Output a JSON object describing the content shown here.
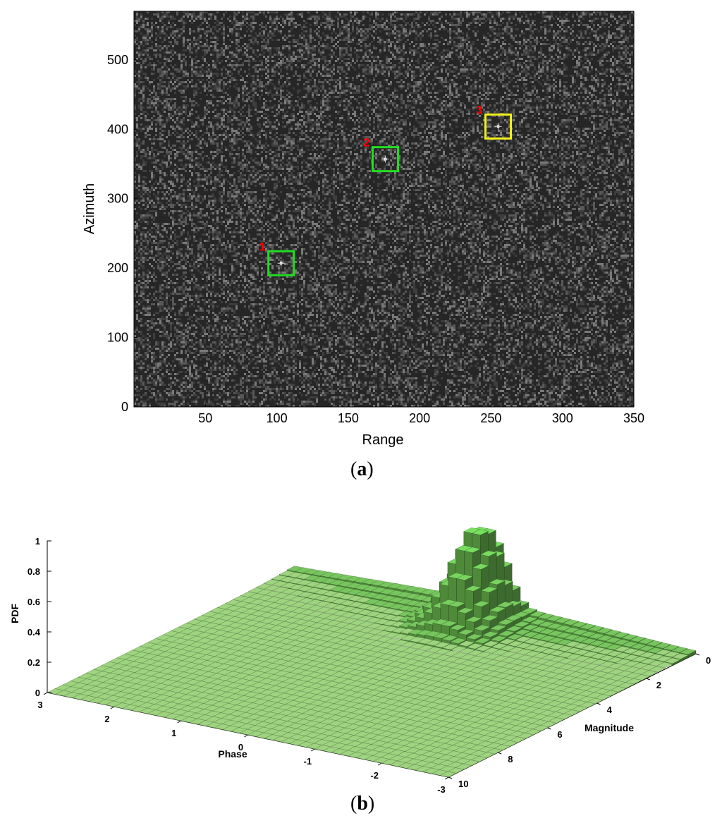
{
  "chart_data": [
    {
      "type": "heatmap",
      "image_type": "SAR intensity image (speckle noise background)",
      "xlabel": "Range",
      "ylabel": "Azimuth",
      "xlim": [
        0,
        350
      ],
      "ylim": [
        0,
        570
      ],
      "xticks": [
        50,
        100,
        150,
        200,
        250,
        300,
        350
      ],
      "yticks": [
        0,
        100,
        200,
        300,
        400,
        500
      ],
      "colormap": "gray",
      "targets": [
        {
          "label": "1",
          "x": 103,
          "y": 207,
          "box_color": "#22dd22",
          "label_color": "#ff0000"
        },
        {
          "label": "2",
          "x": 176,
          "y": 357,
          "box_color": "#22dd22",
          "label_color": "#ff0000"
        },
        {
          "label": "3",
          "x": 255,
          "y": 404,
          "box_color": "#f2f21a",
          "label_color": "#ff0000"
        }
      ],
      "panel_label": "a"
    },
    {
      "type": "bar3d",
      "xlabel": "Phase",
      "ylabel": "Magnitude",
      "zlabel": "PDF",
      "phase_ticks": [
        3,
        2,
        1,
        0,
        -1,
        -2,
        -3
      ],
      "magnitude_ticks": [
        0,
        2,
        4,
        6,
        8,
        10
      ],
      "pdf_ticks": [
        0,
        0.2,
        0.4,
        0.6,
        0.8,
        1
      ],
      "zlim": [
        0,
        1
      ],
      "bar_color": "#74c45a",
      "ridge": {
        "phase": 0,
        "peak_magnitude": 0.7,
        "peak_pdf": 0.58
      },
      "panel_label": "b"
    }
  ]
}
